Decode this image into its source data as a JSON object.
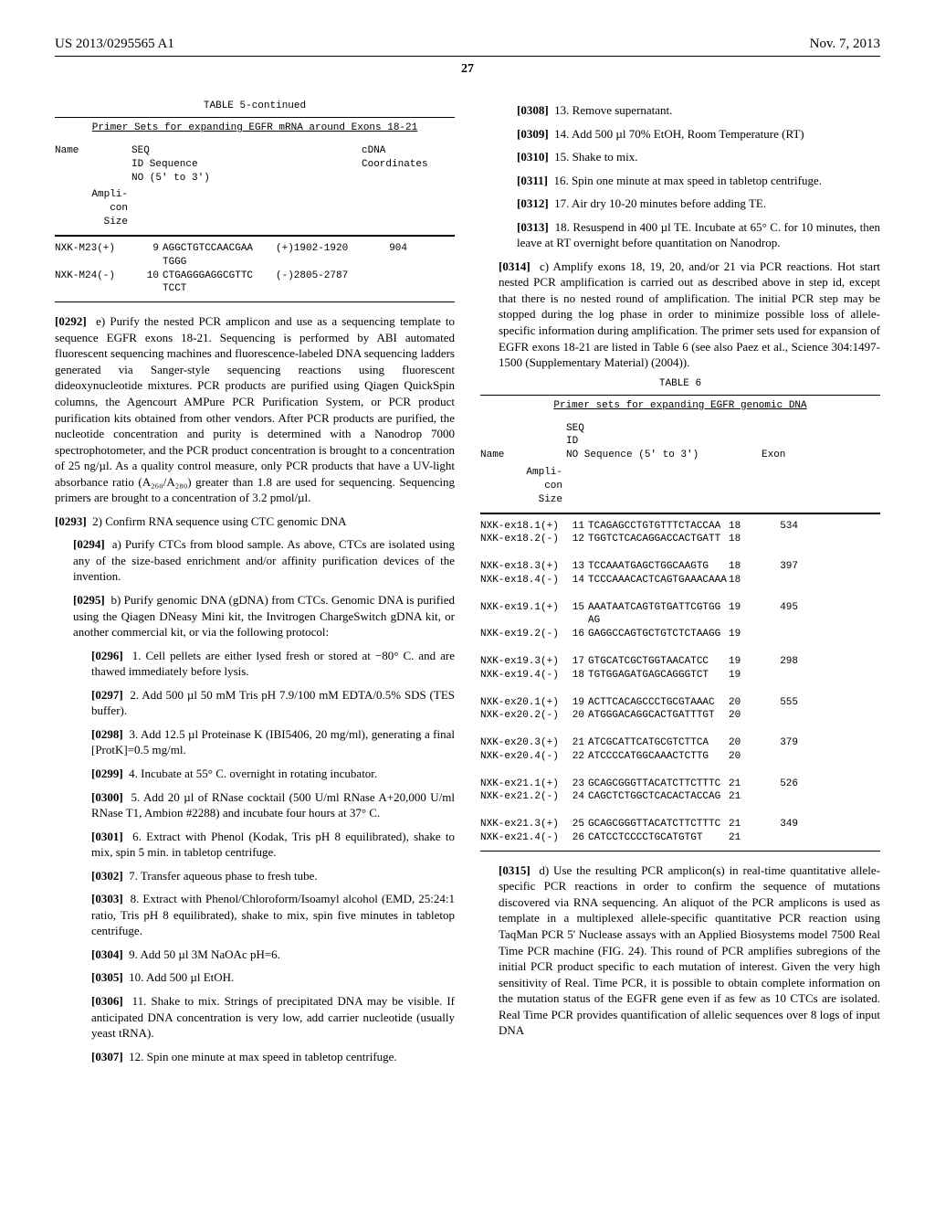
{
  "header": {
    "pub": "US 2013/0295565 A1",
    "date": "Nov. 7, 2013",
    "page": "27"
  },
  "table5": {
    "title": "TABLE 5-continued",
    "subtitle": "Primer Sets for expanding EGFR mRNA around Exons 18-21",
    "header_cols": [
      "Name",
      "SEQ ID NO",
      "Sequence (5' to 3')",
      "cDNA Coordinates",
      "Ampli-con Size"
    ],
    "rows": [
      {
        "name": "NXK-M23(+)",
        "seq_id": "9",
        "sequence": "AGGCTGTCCAACGAA TGGG",
        "coord": "(+)1902-1920",
        "size": "904"
      },
      {
        "name": "NXK-M24(-)",
        "seq_id": "10",
        "sequence": "CTGAGGGAGGCGTTC TCCT",
        "coord": "(-)2805-2787",
        "size": ""
      }
    ]
  },
  "p0292": {
    "num": "[0292]",
    "text": "e) Purify the nested PCR amplicon and use as a sequencing template to sequence EGFR exons 18-21. Sequencing is performed by ABI automated fluorescent sequencing machines and fluorescence-labeled DNA sequencing ladders generated via Sanger-style sequencing reactions using fluorescent dideoxynucleotide mixtures. PCR products are purified using Qiagen QuickSpin columns, the Agencourt AMPure PCR Purification System, or PCR product purification kits obtained from other vendors. After PCR products are purified, the nucleotide concentration and purity is determined with a Nanodrop 7000 spectrophotometer, and the PCR product concentration is brought to a concentration of 25 ng/µl. As a quality control measure, only PCR products that have a UV-light absorbance ratio (A₂₆₀/A₂₈₀) greater than 1.8 are used for sequencing. Sequencing primers are brought to a concentration of 3.2 pmol/µl."
  },
  "p0293": {
    "num": "[0293]",
    "text": "2) Confirm RNA sequence using CTC genomic DNA"
  },
  "p0294": {
    "num": "[0294]",
    "text": "a) Purify CTCs from blood sample. As above, CTCs are isolated using any of the size-based enrichment and/or affinity purification devices of the invention."
  },
  "p0295": {
    "num": "[0295]",
    "text": "b) Purify genomic DNA (gDNA) from CTCs. Genomic DNA is purified using the Qiagen DNeasy Mini kit, the Invitrogen ChargeSwitch gDNA kit, or another commercial kit, or via the following protocol:"
  },
  "p0296": {
    "num": "[0296]",
    "text": "1. Cell pellets are either lysed fresh or stored at −80° C. and are thawed immediately before lysis."
  },
  "p0297": {
    "num": "[0297]",
    "text": "2. Add 500 µl 50 mM Tris pH 7.9/100 mM EDTA/0.5% SDS (TES buffer)."
  },
  "p0298": {
    "num": "[0298]",
    "text": "3. Add 12.5 µl Proteinase K (IBI5406, 20 mg/ml), generating a final [ProtK]=0.5 mg/ml."
  },
  "p0299": {
    "num": "[0299]",
    "text": "4. Incubate at 55° C. overnight in rotating incubator."
  },
  "p0300": {
    "num": "[0300]",
    "text": "5. Add 20 µl of RNase cocktail (500 U/ml RNase A+20,000 U/ml RNase T1, Ambion #2288) and incubate four hours at 37° C."
  },
  "p0301": {
    "num": "[0301]",
    "text": "6. Extract with Phenol (Kodak, Tris pH 8 equilibrated), shake to mix, spin 5 min. in tabletop centrifuge."
  },
  "p0302": {
    "num": "[0302]",
    "text": "7. Transfer aqueous phase to fresh tube."
  },
  "p0303": {
    "num": "[0303]",
    "text": "8. Extract with Phenol/Chloroform/Isoamyl alcohol (EMD, 25:24:1 ratio, Tris pH 8 equilibrated), shake to mix, spin five minutes in tabletop centrifuge."
  },
  "p0304": {
    "num": "[0304]",
    "text": "9. Add 50 µl 3M NaOAc pH=6."
  },
  "p0305": {
    "num": "[0305]",
    "text": "10. Add 500 µl EtOH."
  },
  "p0306": {
    "num": "[0306]",
    "text": "11. Shake to mix. Strings of precipitated DNA may be visible. If anticipated DNA concentration is very low, add carrier nucleotide (usually yeast tRNA)."
  },
  "p0307": {
    "num": "[0307]",
    "text": "12. Spin one minute at max speed in tabletop centrifuge."
  },
  "p0308": {
    "num": "[0308]",
    "text": "13. Remove supernatant."
  },
  "p0309": {
    "num": "[0309]",
    "text": "14. Add 500 µl 70% EtOH, Room Temperature (RT)"
  },
  "p0310": {
    "num": "[0310]",
    "text": "15. Shake to mix."
  },
  "p0311": {
    "num": "[0311]",
    "text": "16. Spin one minute at max speed in tabletop centrifuge."
  },
  "p0312": {
    "num": "[0312]",
    "text": "17. Air dry 10-20 minutes before adding TE."
  },
  "p0313": {
    "num": "[0313]",
    "text": "18. Resuspend in 400 µl TE. Incubate at 65° C. for 10 minutes, then leave at RT overnight before quantitation on Nanodrop."
  },
  "p0314": {
    "num": "[0314]",
    "text": "c) Amplify exons 18, 19, 20, and/or 21 via PCR reactions. Hot start nested PCR amplification is carried out as described above in step id, except that there is no nested round of amplification. The initial PCR step may be stopped during the log phase in order to minimize possible loss of allele-specific information during amplification. The primer sets used for expansion of EGFR exons 18-21 are listed in Table 6 (see also Paez et al., Science 304:1497-1500 (Supplementary Material) (2004))."
  },
  "table6": {
    "title": "TABLE 6",
    "subtitle": "Primer sets for expanding EGFR genomic DNA",
    "header_cols": [
      "Name",
      "SEQ ID NO",
      "Sequence (5' to 3')",
      "Exon",
      "Ampli-con Size"
    ],
    "rows": [
      {
        "name": "NXK-ex18.1(+)",
        "seq_id": "11",
        "sequence": "TCAGAGCCTGTGTTTCTACCAA",
        "exon": "18",
        "size": "534"
      },
      {
        "name": "NXK-ex18.2(-)",
        "seq_id": "12",
        "sequence": "TGGTCTCACAGGACCACTGATT",
        "exon": "18",
        "size": ""
      },
      {
        "name": "",
        "seq_id": "",
        "sequence": "",
        "exon": "",
        "size": ""
      },
      {
        "name": "NXK-ex18.3(+)",
        "seq_id": "13",
        "sequence": "TCCAAATGAGCTGGCAAGTG",
        "exon": "18",
        "size": "397"
      },
      {
        "name": "NXK-ex18.4(-)",
        "seq_id": "14",
        "sequence": "TCCCAAACACTCAGTGAAACAAA",
        "exon": "18",
        "size": ""
      },
      {
        "name": "",
        "seq_id": "",
        "sequence": "",
        "exon": "",
        "size": ""
      },
      {
        "name": "NXK-ex19.1(+)",
        "seq_id": "15",
        "sequence": "AAATAATCAGTGTGATTCGTGG AG",
        "exon": "19",
        "size": "495"
      },
      {
        "name": "NXK-ex19.2(-)",
        "seq_id": "16",
        "sequence": "GAGGCCAGTGCTGTCTCTAAGG",
        "exon": "19",
        "size": ""
      },
      {
        "name": "",
        "seq_id": "",
        "sequence": "",
        "exon": "",
        "size": ""
      },
      {
        "name": "NXK-ex19.3(+)",
        "seq_id": "17",
        "sequence": "GTGCATCGCTGGTAACATCC",
        "exon": "19",
        "size": "298"
      },
      {
        "name": "NXK-ex19.4(-)",
        "seq_id": "18",
        "sequence": "TGTGGAGATGAGCAGGGTCT",
        "exon": "19",
        "size": ""
      },
      {
        "name": "",
        "seq_id": "",
        "sequence": "",
        "exon": "",
        "size": ""
      },
      {
        "name": "NXK-ex20.1(+)",
        "seq_id": "19",
        "sequence": "ACTTCACAGCCCTGCGTAAAC",
        "exon": "20",
        "size": "555"
      },
      {
        "name": "NXK-ex20.2(-)",
        "seq_id": "20",
        "sequence": "ATGGGACAGGCACTGATTTGT",
        "exon": "20",
        "size": ""
      },
      {
        "name": "",
        "seq_id": "",
        "sequence": "",
        "exon": "",
        "size": ""
      },
      {
        "name": "NXK-ex20.3(+)",
        "seq_id": "21",
        "sequence": "ATCGCATTCATGCGTCTTCA",
        "exon": "20",
        "size": "379"
      },
      {
        "name": "NXK-ex20.4(-)",
        "seq_id": "22",
        "sequence": "ATCCCCATGGCAAACTCTTG",
        "exon": "20",
        "size": ""
      },
      {
        "name": "",
        "seq_id": "",
        "sequence": "",
        "exon": "",
        "size": ""
      },
      {
        "name": "NXK-ex21.1(+)",
        "seq_id": "23",
        "sequence": "GCAGCGGGTTACATCTTCTTTC",
        "exon": "21",
        "size": "526"
      },
      {
        "name": "NXK-ex21.2(-)",
        "seq_id": "24",
        "sequence": "CAGCTCTGGCTCACACTACCAG",
        "exon": "21",
        "size": ""
      },
      {
        "name": "",
        "seq_id": "",
        "sequence": "",
        "exon": "",
        "size": ""
      },
      {
        "name": "NXK-ex21.3(+)",
        "seq_id": "25",
        "sequence": "GCAGCGGGTTACATCTTCTTTC",
        "exon": "21",
        "size": "349"
      },
      {
        "name": "NXK-ex21.4(-)",
        "seq_id": "26",
        "sequence": "CATCCTCCCCTGCATGTGT",
        "exon": "21",
        "size": ""
      }
    ]
  },
  "p0315": {
    "num": "[0315]",
    "text": "d) Use the resulting PCR amplicon(s) in real-time quantitative allele-specific PCR reactions in order to confirm the sequence of mutations discovered via RNA sequencing. An aliquot of the PCR amplicons is used as template in a multiplexed allele-specific quantitative PCR reaction using TaqMan PCR 5' Nuclease assays with an Applied Biosystems model 7500 Real Time PCR machine (FIG. 24). This round of PCR amplifies subregions of the initial PCR product specific to each mutation of interest. Given the very high sensitivity of Real. Time PCR, it is possible to obtain complete information on the mutation status of the EGFR gene even if as few as 10 CTCs are isolated. Real Time PCR provides quantification of allelic sequences over 8 logs of input DNA"
  }
}
